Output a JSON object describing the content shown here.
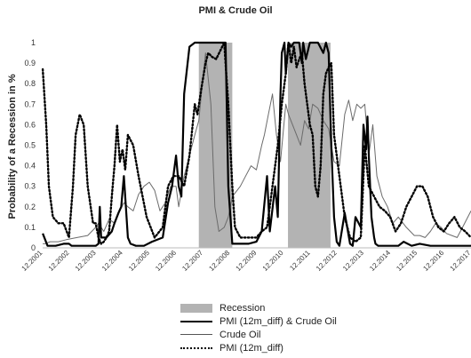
{
  "chart_data": {
    "type": "line",
    "title": "PMI & Crude Oil",
    "xlabel": "",
    "ylabel": "Probability of a Recession in %",
    "ylim": [
      0,
      1
    ],
    "yticks": [
      "0",
      "0.1",
      "0.2",
      "0.3",
      "0.4",
      "0.5",
      "0.6",
      "0.7",
      "0.8",
      "0.9",
      "1"
    ],
    "xlim": [
      2001.917,
      2017.917
    ],
    "xticks": [
      "12.2001",
      "12.2002",
      "12.2003",
      "12.2004",
      "12.2005",
      "12.2006",
      "12.2007",
      "12.2008",
      "12.2009",
      "12.2010",
      "12.2011",
      "12.2012",
      "12.2013",
      "12.2014",
      "12.2015",
      "12.2016",
      "12.2017"
    ],
    "recessions": [
      {
        "start": 2007.75,
        "end": 2009.0
      },
      {
        "start": 2011.08,
        "end": 2012.67
      }
    ],
    "legend": [
      "Recession",
      "PMI (12m_diff) & Crude Oil",
      "Crude Oil",
      "PMI (12m_diff)"
    ],
    "legend_position": "bottom",
    "grid": false,
    "series": [
      {
        "name": "PMI (12m_diff) & Crude Oil",
        "style": "solid-thick",
        "x": [
          2001.92,
          2002.1,
          2002.4,
          2002.7,
          2002.9,
          2003.0,
          2003.5,
          2003.9,
          2004.0,
          2004.05,
          2004.1,
          2004.3,
          2004.5,
          2004.6,
          2004.75,
          2004.85,
          2004.95,
          2005.1,
          2005.2,
          2005.4,
          2005.7,
          2006.0,
          2006.4,
          2006.6,
          2006.75,
          2006.9,
          2007.0,
          2007.1,
          2007.2,
          2007.4,
          2007.6,
          2007.8,
          2008.0,
          2008.4,
          2008.6,
          2008.75,
          2008.85,
          2009.0,
          2009.1,
          2009.3,
          2009.6,
          2009.9,
          2010.1,
          2010.3,
          2010.4,
          2010.6,
          2010.7,
          2010.8,
          2010.85,
          2010.95,
          2011.0,
          2011.1,
          2011.2,
          2011.3,
          2011.5,
          2011.6,
          2011.65,
          2011.75,
          2011.9,
          2012.0,
          2012.2,
          2012.4,
          2012.5,
          2012.6,
          2012.7,
          2012.8,
          2012.9,
          2013.0,
          2013.2,
          2013.4,
          2013.5,
          2013.6,
          2013.8,
          2013.9,
          2014.0,
          2014.05,
          2014.1,
          2014.2,
          2014.3,
          2014.35,
          2014.45,
          2014.6,
          2014.8,
          2015.0,
          2015.2,
          2015.4,
          2015.7,
          2016.0,
          2016.4,
          2016.7,
          2017.0,
          2017.3,
          2017.6,
          2017.917
        ],
        "y": [
          0.07,
          0.01,
          0.01,
          0.02,
          0.02,
          0.01,
          0.01,
          0.01,
          0.02,
          0.2,
          0.05,
          0.05,
          0.08,
          0.12,
          0.17,
          0.2,
          0.35,
          0.05,
          0.02,
          0.01,
          0.01,
          0.03,
          0.05,
          0.22,
          0.3,
          0.45,
          0.3,
          0.25,
          0.75,
          0.98,
          1,
          1,
          1,
          1,
          1,
          1,
          0.3,
          0.02,
          0.02,
          0.02,
          0.02,
          0.03,
          0.08,
          0.35,
          0.08,
          0.3,
          0.15,
          0.75,
          0.95,
          1,
          0.85,
          1,
          0.98,
          1,
          1,
          0.9,
          1,
          0.92,
          1,
          1,
          1,
          0.95,
          1,
          0.95,
          0.5,
          0.15,
          0.03,
          0.01,
          0.17,
          0.02,
          0.01,
          0.15,
          0.1,
          0.6,
          0.48,
          0.64,
          0.45,
          0.15,
          0.05,
          0.02,
          0.01,
          0.01,
          0.01,
          0.01,
          0.01,
          0.03,
          0.01,
          0.02,
          0.01,
          0.01,
          0.01,
          0.01,
          0.01,
          0.01
        ]
      },
      {
        "name": "Crude Oil",
        "style": "solid-thin",
        "x": [
          2001.92,
          2002.0,
          2002.2,
          2002.5,
          2002.8,
          2003.2,
          2003.6,
          2003.9,
          2004.0,
          2004.2,
          2004.4,
          2004.6,
          2004.8,
          2004.95,
          2005.1,
          2005.3,
          2005.5,
          2005.7,
          2005.9,
          2006.1,
          2006.3,
          2006.5,
          2006.7,
          2006.9,
          2007.0,
          2007.2,
          2007.4,
          2007.6,
          2007.75,
          2007.9,
          2008.0,
          2008.2,
          2008.35,
          2008.5,
          2008.7,
          2008.85,
          2009.0,
          2009.3,
          2009.5,
          2009.7,
          2009.9,
          2010.1,
          2010.2,
          2010.35,
          2010.5,
          2010.65,
          2010.8,
          2011.0,
          2011.1,
          2011.25,
          2011.4,
          2011.55,
          2011.7,
          2011.85,
          2012.0,
          2012.2,
          2012.4,
          2012.6,
          2012.8,
          2013.0,
          2013.2,
          2013.35,
          2013.5,
          2013.65,
          2013.8,
          2013.95,
          2014.1,
          2014.25,
          2014.4,
          2014.6,
          2014.8,
          2015.0,
          2015.2,
          2015.5,
          2015.8,
          2016.0,
          2016.2,
          2016.4,
          2016.6,
          2016.8,
          2017.0,
          2017.2,
          2017.4,
          2017.6,
          2017.917
        ],
        "y": [
          0.02,
          0.02,
          0.03,
          0.03,
          0.04,
          0.05,
          0.06,
          0.1,
          0.12,
          0.08,
          0.14,
          0.12,
          0.18,
          0.22,
          0.2,
          0.18,
          0.26,
          0.3,
          0.32,
          0.28,
          0.18,
          0.22,
          0.3,
          0.3,
          0.2,
          0.35,
          0.45,
          0.55,
          0.62,
          0.82,
          0.95,
          0.7,
          0.2,
          0.08,
          0.1,
          0.15,
          0.25,
          0.3,
          0.35,
          0.4,
          0.38,
          0.5,
          0.55,
          0.65,
          0.75,
          0.55,
          0.42,
          0.7,
          0.65,
          0.6,
          0.55,
          0.5,
          0.62,
          0.58,
          0.7,
          0.68,
          0.62,
          0.58,
          0.42,
          0.4,
          0.65,
          0.72,
          0.62,
          0.7,
          0.68,
          0.7,
          0.45,
          0.6,
          0.35,
          0.25,
          0.2,
          0.12,
          0.15,
          0.1,
          0.06,
          0.06,
          0.05,
          0.08,
          0.12,
          0.1,
          0.07,
          0.06,
          0.05,
          0.1,
          0.18
        ]
      },
      {
        "name": "PMI (12m_diff)",
        "style": "dotted-thick",
        "x": [
          2001.92,
          2002.05,
          2002.15,
          2002.3,
          2002.5,
          2002.7,
          2002.9,
          2003.05,
          2003.15,
          2003.3,
          2003.45,
          2003.6,
          2003.8,
          2003.9,
          2004.0,
          2004.1,
          2004.2,
          2004.3,
          2004.4,
          2004.5,
          2004.6,
          2004.7,
          2004.8,
          2004.9,
          2005.0,
          2005.1,
          2005.3,
          2005.5,
          2005.8,
          2006.1,
          2006.4,
          2006.6,
          2006.8,
          2007.0,
          2007.2,
          2007.4,
          2007.6,
          2007.7,
          2007.85,
          2008.0,
          2008.1,
          2008.25,
          2008.4,
          2008.55,
          2008.7,
          2008.85,
          2009.0,
          2009.1,
          2009.3,
          2009.6,
          2009.9,
          2010.1,
          2010.3,
          2010.5,
          2010.7,
          2010.85,
          2011.0,
          2011.1,
          2011.2,
          2011.3,
          2011.4,
          2011.5,
          2011.6,
          2011.7,
          2011.8,
          2011.9,
          2012.0,
          2012.1,
          2012.2,
          2012.3,
          2012.4,
          2012.5,
          2012.6,
          2012.7,
          2012.8,
          2013.0,
          2013.2,
          2013.4,
          2013.6,
          2013.8,
          2013.95,
          2014.1,
          2014.3,
          2014.5,
          2014.7,
          2014.9,
          2015.1,
          2015.3,
          2015.5,
          2015.7,
          2015.9,
          2016.1,
          2016.3,
          2016.5,
          2016.7,
          2016.9,
          2017.1,
          2017.3,
          2017.5,
          2017.7,
          2017.917
        ],
        "y": [
          0.87,
          0.6,
          0.3,
          0.15,
          0.12,
          0.12,
          0.05,
          0.3,
          0.55,
          0.65,
          0.6,
          0.3,
          0.12,
          0.12,
          0.05,
          0.02,
          0.03,
          0.05,
          0.08,
          0.25,
          0.4,
          0.6,
          0.42,
          0.48,
          0.38,
          0.55,
          0.5,
          0.35,
          0.15,
          0.05,
          0.1,
          0.3,
          0.35,
          0.35,
          0.3,
          0.45,
          0.7,
          0.65,
          0.78,
          0.9,
          0.95,
          0.93,
          0.92,
          0.96,
          1,
          0.7,
          0.3,
          0.1,
          0.05,
          0.05,
          0.05,
          0.08,
          0.1,
          0.3,
          0.5,
          0.7,
          0.85,
          1,
          0.9,
          0.98,
          0.88,
          0.92,
          0.95,
          0.8,
          0.7,
          0.6,
          0.55,
          0.3,
          0.25,
          0.4,
          0.75,
          0.85,
          0.88,
          0.9,
          0.55,
          0.35,
          0.15,
          0.05,
          0.03,
          0.05,
          0.5,
          0.3,
          0.25,
          0.2,
          0.18,
          0.15,
          0.08,
          0.12,
          0.2,
          0.25,
          0.3,
          0.3,
          0.25,
          0.15,
          0.1,
          0.08,
          0.12,
          0.15,
          0.1,
          0.08,
          0.05
        ]
      }
    ]
  }
}
